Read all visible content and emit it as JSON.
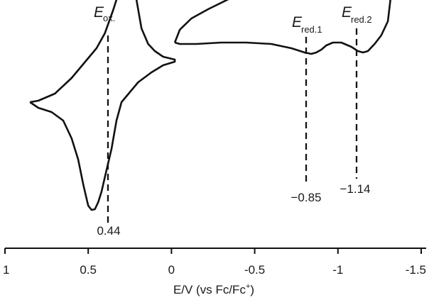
{
  "chart_data": {
    "type": "line",
    "title": "",
    "xlabel": {
      "prefix": "E/V (vs  Fc/Fc",
      "sup": "+",
      "suffix": ")"
    },
    "ylabel": "",
    "xlim": [
      1,
      -1.5
    ],
    "x_ticks": [
      1,
      0.5,
      0,
      -0.5,
      -1,
      -1.5
    ],
    "x_tick_labels": [
      "1",
      "0.5",
      "0",
      "-0.5",
      "-1",
      "-1.5"
    ],
    "grid": false,
    "legend": "none",
    "line_color": "#111111",
    "y_units": "arbitrary (current, no axis shown)",
    "series": [
      {
        "points": [
          [
            0.85,
            6
          ],
          [
            0.8,
            8
          ],
          [
            0.7,
            18
          ],
          [
            0.6,
            40
          ],
          [
            0.5,
            68
          ],
          [
            0.45,
            82
          ],
          [
            0.4,
            103
          ],
          [
            0.35,
            136
          ],
          [
            0.32,
            158
          ],
          [
            0.3,
            172
          ],
          [
            0.28,
            182
          ],
          [
            0.26,
            187
          ],
          [
            0.24,
            184
          ],
          [
            0.21,
            150
          ],
          [
            0.18,
            110
          ],
          [
            0.14,
            88
          ],
          [
            0.1,
            78
          ],
          [
            0.05,
            70
          ],
          [
            -0.02,
            66
          ],
          [
            -0.02,
            63
          ],
          [
            0.05,
            58
          ],
          [
            0.12,
            48
          ],
          [
            0.2,
            34
          ],
          [
            0.25,
            20
          ],
          [
            0.3,
            6
          ],
          [
            0.33,
            -20
          ],
          [
            0.36,
            -60
          ],
          [
            0.4,
            -100
          ],
          [
            0.42,
            -120
          ],
          [
            0.44,
            -135
          ],
          [
            0.46,
            -145
          ],
          [
            0.48,
            -146
          ],
          [
            0.5,
            -140
          ],
          [
            0.53,
            -110
          ],
          [
            0.56,
            -75
          ],
          [
            0.6,
            -45
          ],
          [
            0.65,
            -20
          ],
          [
            0.72,
            -8
          ],
          [
            0.8,
            -2
          ],
          [
            0.85,
            6
          ]
        ]
      },
      {
        "points": [
          [
            -0.02,
            90
          ],
          [
            -0.05,
            108
          ],
          [
            -0.12,
            124
          ],
          [
            -0.22,
            137
          ],
          [
            -0.35,
            152
          ],
          [
            -0.45,
            162
          ],
          [
            -0.55,
            172
          ],
          [
            -0.65,
            180
          ],
          [
            -0.72,
            188
          ],
          [
            -0.78,
            200
          ],
          [
            -0.82,
            215
          ],
          [
            -0.85,
            225
          ],
          [
            -0.88,
            227
          ],
          [
            -0.91,
            220
          ],
          [
            -0.95,
            213
          ],
          [
            -0.99,
            214
          ],
          [
            -1.04,
            218
          ],
          [
            -1.08,
            226
          ],
          [
            -1.11,
            238
          ],
          [
            -1.14,
            245
          ],
          [
            -1.18,
            243
          ],
          [
            -1.24,
            240
          ],
          [
            -1.31,
            238
          ],
          [
            -1.32,
            230
          ],
          [
            -1.32,
            160
          ],
          [
            -1.3,
            120
          ],
          [
            -1.26,
            100
          ],
          [
            -1.22,
            88
          ],
          [
            -1.18,
            78
          ],
          [
            -1.15,
            76
          ],
          [
            -1.12,
            78
          ],
          [
            -1.08,
            84
          ],
          [
            -1.02,
            90
          ],
          [
            -0.97,
            90
          ],
          [
            -0.93,
            86
          ],
          [
            -0.9,
            80
          ],
          [
            -0.87,
            76
          ],
          [
            -0.84,
            74
          ],
          [
            -0.8,
            76
          ],
          [
            -0.72,
            82
          ],
          [
            -0.6,
            88
          ],
          [
            -0.45,
            90
          ],
          [
            -0.3,
            90
          ],
          [
            -0.15,
            88
          ],
          [
            -0.05,
            88
          ],
          [
            -0.02,
            90
          ]
        ]
      }
    ],
    "annotations": [
      {
        "main": "E",
        "sub": "ox.",
        "x": 0.36,
        "value_label": "0.44"
      },
      {
        "main": "E",
        "sub": "red.1",
        "x": -0.84,
        "value_label": "−0.85"
      },
      {
        "main": "E",
        "sub": "red.2",
        "x": -1.15,
        "value_label": "−1.14"
      }
    ]
  }
}
